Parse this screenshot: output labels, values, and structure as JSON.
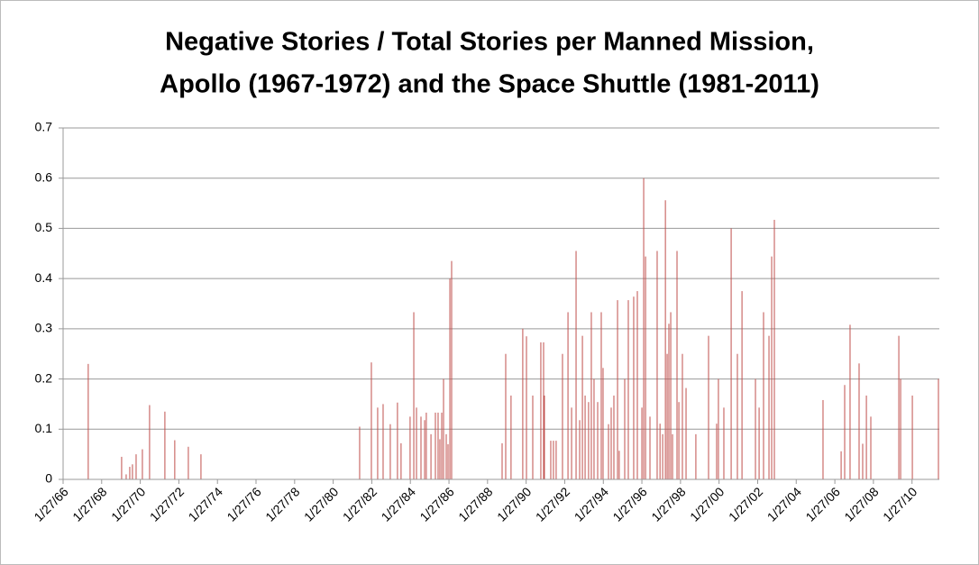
{
  "chart_data": {
    "type": "bar",
    "title": [
      "Negative Stories / Total Stories per Manned Mission,",
      "Apollo (1967-1972) and the Space Shuttle (1981-2011)"
    ],
    "color": "#c0504d",
    "grid": true,
    "xlim": [
      "1966-01-27",
      "2011-06-28"
    ],
    "xticks": [
      {
        "value": "1966-01-27",
        "label": "1/27/66"
      },
      {
        "value": "1968-01-27",
        "label": "1/27/68"
      },
      {
        "value": "1970-01-27",
        "label": "1/27/70"
      },
      {
        "value": "1972-01-27",
        "label": "1/27/72"
      },
      {
        "value": "1974-01-27",
        "label": "1/27/74"
      },
      {
        "value": "1976-01-27",
        "label": "1/27/76"
      },
      {
        "value": "1978-01-27",
        "label": "1/27/78"
      },
      {
        "value": "1980-01-27",
        "label": "1/27/80"
      },
      {
        "value": "1982-01-27",
        "label": "1/27/82"
      },
      {
        "value": "1984-01-27",
        "label": "1/27/84"
      },
      {
        "value": "1986-01-27",
        "label": "1/27/86"
      },
      {
        "value": "1988-01-27",
        "label": "1/27/88"
      },
      {
        "value": "1990-01-27",
        "label": "1/27/90"
      },
      {
        "value": "1992-01-27",
        "label": "1/27/92"
      },
      {
        "value": "1994-01-27",
        "label": "1/27/94"
      },
      {
        "value": "1996-01-27",
        "label": "1/27/96"
      },
      {
        "value": "1998-01-27",
        "label": "1/27/98"
      },
      {
        "value": "2000-01-27",
        "label": "1/27/00"
      },
      {
        "value": "2002-01-27",
        "label": "1/27/02"
      },
      {
        "value": "2004-01-27",
        "label": "1/27/04"
      },
      {
        "value": "2006-01-27",
        "label": "1/27/06"
      },
      {
        "value": "2008-01-27",
        "label": "1/27/08"
      },
      {
        "value": "2010-01-27",
        "label": "1/27/10"
      }
    ],
    "ylim": [
      0,
      0.7
    ],
    "yticks": [
      0,
      0.1,
      0.2,
      0.3,
      0.4,
      0.5,
      0.6,
      0.7
    ],
    "x": [
      "1967-05-18",
      "1969-02-08",
      "1969-05-05",
      "1969-07-12",
      "1969-09-01",
      "1969-11-09",
      "1970-03-08",
      "1970-07-22",
      "1971-05-08",
      "1971-11-11",
      "1972-07-25",
      "1973-03-21",
      "1981-06-11",
      "1982-01-19",
      "1982-05-18",
      "1982-08-29",
      "1983-01-12",
      "1983-05-28",
      "1983-08-04",
      "1984-01-22",
      "1984-04-01",
      "1984-05-22",
      "1984-08-15",
      "1984-10-23",
      "1984-11-24",
      "1985-02-20",
      "1985-05-15",
      "1985-07-05",
      "1985-08-08",
      "1985-09-12",
      "1985-10-16",
      "1985-12-06",
      "1986-01-09",
      "1986-02-13",
      "1986-03-18",
      "1988-10-29",
      "1989-01-05",
      "1989-04-16",
      "1989-11-24",
      "1990-02-02",
      "1990-06-01",
      "1990-11-01",
      "1990-12-23",
      "1991-01-08",
      "1991-05-08",
      "1991-06-28",
      "1991-08-18",
      "1991-12-16",
      "1992-03-29",
      "1992-06-05",
      "1992-08-29",
      "1992-11-05",
      "1992-12-27",
      "1993-02-16",
      "1993-04-23",
      "1993-06-14",
      "1993-08-04",
      "1993-10-12",
      "1993-12-19",
      "1994-01-22",
      "1994-05-05",
      "1994-06-25",
      "1994-08-15",
      "1994-10-23",
      "1994-11-24",
      "1995-03-08",
      "1995-05-15",
      "1995-08-25",
      "1995-11-02",
      "1996-01-27",
      "1996-03-01",
      "1996-04-05",
      "1996-06-28",
      "1996-11-11",
      "1997-01-04",
      "1997-02-23",
      "1997-04-16",
      "1997-05-19",
      "1997-06-21",
      "1997-07-26",
      "1997-08-29",
      "1997-11-22",
      "1997-12-27",
      "1998-03-04",
      "1998-05-12",
      "1998-11-14",
      "1999-07-12",
      "1999-12-12",
      "2000-01-15",
      "2000-04-27",
      "2000-09-12",
      "2001-01-08",
      "2001-04-05",
      "2001-12-16",
      "2002-02-23",
      "2002-05-18",
      "2002-08-29",
      "2002-10-19",
      "2002-12-09",
      "2005-06-17",
      "2006-05-26",
      "2006-08-01",
      "2006-11-11",
      "2007-05-01",
      "2007-07-08",
      "2007-09-16",
      "2007-12-09",
      "2009-05-22",
      "2009-06-25",
      "2010-02-02",
      "2011-06-11"
    ],
    "values": [
      0.23,
      0.045,
      0.01,
      0.025,
      0.03,
      0.05,
      0.06,
      0.148,
      0.135,
      0.078,
      0.065,
      0.05,
      0.105,
      0.233,
      0.143,
      0.15,
      0.11,
      0.153,
      0.072,
      0.125,
      0.333,
      0.143,
      0.125,
      0.118,
      0.133,
      0.09,
      0.133,
      0.133,
      0.08,
      0.133,
      0.2,
      0.09,
      0.07,
      0.4,
      0.435,
      0.072,
      0.25,
      0.167,
      0.3,
      0.285,
      0.167,
      0.273,
      0.273,
      0.167,
      0.077,
      0.077,
      0.077,
      0.25,
      0.333,
      0.143,
      0.455,
      0.118,
      0.286,
      0.167,
      0.154,
      0.333,
      0.2,
      0.154,
      0.333,
      0.222,
      0.11,
      0.143,
      0.167,
      0.357,
      0.057,
      0.2,
      0.357,
      0.364,
      0.375,
      0.143,
      0.6,
      0.444,
      0.125,
      0.455,
      0.111,
      0.09,
      0.556,
      0.25,
      0.31,
      0.333,
      0.09,
      0.455,
      0.154,
      0.25,
      0.182,
      0.09,
      0.286,
      0.111,
      0.2,
      0.143,
      0.5,
      0.25,
      0.375,
      0.2,
      0.143,
      0.333,
      0.286,
      0.444,
      0.517,
      0.158,
      0.056,
      0.188,
      0.308,
      0.231,
      0.071,
      0.167,
      0.125,
      0.286,
      0.2,
      0.167,
      0.2
    ]
  }
}
